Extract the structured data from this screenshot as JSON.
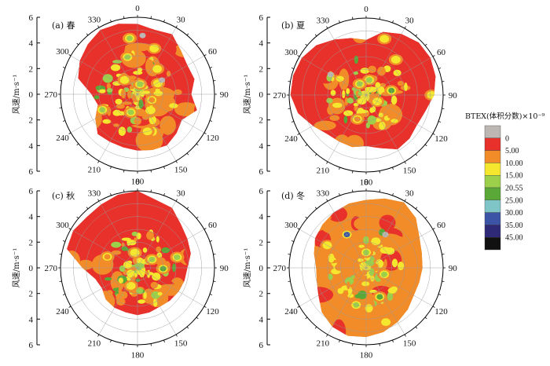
{
  "chart_data": {
    "type": "heatmap",
    "projection": "polar",
    "panels": [
      {
        "label": "(a) 春",
        "ylabel": "风速/m·s⁻¹",
        "radial_ticks": [
          "6",
          "4",
          "2",
          "0",
          "2",
          "4",
          "6"
        ],
        "angle_ticks": [
          "0",
          "30",
          "60",
          "90",
          "120",
          "150",
          "180",
          "210",
          "240",
          "270",
          "300",
          "330"
        ],
        "rmax": 6,
        "coverage": [
          5.5,
          5.2,
          5.4,
          4.8,
          4.5,
          4.6,
          4.2,
          4.8,
          4.0,
          4.3,
          4.6,
          4.5,
          4.4,
          4.3,
          4.3,
          4.4,
          3.8,
          3.2,
          3.6,
          4.8,
          5.2,
          5.5,
          5.8,
          5.7
        ],
        "base_level": 5.0,
        "blobs": [
          [
            14,
            0.8,
            20.55
          ],
          [
            38,
            2.5,
            15.0
          ],
          [
            62,
            1.8,
            15.0
          ],
          [
            112,
            1.2,
            10.0
          ],
          [
            165,
            3.0,
            15.0
          ],
          [
            200,
            1.5,
            20.55
          ],
          [
            246,
            3.0,
            20.55
          ],
          [
            318,
            1.5,
            15.0
          ],
          [
            345,
            3.0,
            20.55
          ],
          [
            5,
            4.6,
            0
          ],
          [
            60,
            2.2,
            0
          ],
          [
            352,
            4.4,
            20.55
          ],
          [
            20,
            3.8,
            15.0
          ]
        ]
      },
      {
        "label": "(b) 夏",
        "ylabel": "风速/m·s⁻¹",
        "radial_ticks": [
          "6",
          "4",
          "2",
          "0",
          "2",
          "4",
          "6"
        ],
        "angle_ticks": [
          "0",
          "30",
          "60",
          "90",
          "120",
          "150",
          "180",
          "210",
          "240",
          "270",
          "300",
          "330"
        ],
        "rmax": 6,
        "coverage": [
          4.3,
          5.1,
          5.5,
          5.8,
          5.8,
          5.6,
          5.3,
          4.8,
          4.6,
          4.8,
          4.9,
          4.3,
          4.0,
          4.2,
          4.2,
          4.3,
          4.8,
          5.5,
          5.9,
          5.9,
          5.8,
          5.5,
          5.0,
          4.6
        ],
        "base_level": 5.0,
        "blobs": [
          [
            12,
            1.2,
            20.55
          ],
          [
            40,
            3.6,
            15.0
          ],
          [
            80,
            2.0,
            25.0
          ],
          [
            90,
            5.1,
            15.0
          ],
          [
            120,
            1.0,
            15.0
          ],
          [
            200,
            2.0,
            10.0
          ],
          [
            300,
            3.2,
            0
          ],
          [
            330,
            1.0,
            20.55
          ],
          [
            18,
            4.6,
            15.0
          ]
        ]
      },
      {
        "label": "(c) 秋",
        "ylabel": "风速/m·s⁻¹",
        "radial_ticks": [
          "6",
          "4",
          "2",
          "0",
          "2",
          "4",
          "6"
        ],
        "angle_ticks": [
          "0",
          "30",
          "60",
          "90",
          "120",
          "150",
          "180",
          "210",
          "240",
          "270",
          "300",
          "330"
        ],
        "rmax": 6,
        "coverage": [
          6.0,
          5.5,
          5.4,
          4.8,
          4.5,
          4.3,
          3.9,
          3.8,
          3.7,
          3.6,
          3.5,
          3.6,
          3.7,
          3.6,
          3.6,
          3.5,
          3.2,
          3.4,
          4.3,
          5.7,
          5.8,
          5.6,
          5.7,
          5.9
        ],
        "base_level": 5.0,
        "blobs": [
          [
            60,
            1.3,
            20.55
          ],
          [
            75,
            3.2,
            20.55
          ],
          [
            92,
            2.0,
            25.0
          ],
          [
            180,
            4.5,
            15.0
          ],
          [
            200,
            1.5,
            15.0
          ],
          [
            290,
            2.5,
            10.0
          ],
          [
            350,
            1.2,
            15.0
          ]
        ]
      },
      {
        "label": "(d) 冬",
        "ylabel": "风速/m·s⁻¹",
        "radial_ticks": [
          "6",
          "4",
          "2",
          "0",
          "2",
          "4",
          "6"
        ],
        "angle_ticks": [
          "0",
          "30",
          "60",
          "90",
          "120",
          "150",
          "180",
          "210",
          "240",
          "270",
          "300",
          "330"
        ],
        "rmax": 6,
        "coverage": [
          5.3,
          5.6,
          5.9,
          5.5,
          4.8,
          4.5,
          4.4,
          4.3,
          4.3,
          4.6,
          4.9,
          5.2,
          5.4,
          5.5,
          5.3,
          4.9,
          4.3,
          4.0,
          3.9,
          4.2,
          4.6,
          4.8,
          5.0,
          5.2
        ],
        "base_level": 10.0,
        "blobs": [
          [
            0,
            1.2,
            20.55
          ],
          [
            30,
            3.0,
            0
          ],
          [
            110,
            1.5,
            20.55
          ],
          [
            155,
            2.5,
            25.0
          ],
          [
            160,
            4.5,
            15.0
          ],
          [
            195,
            3.0,
            20.55
          ],
          [
            330,
            3.0,
            35.0
          ],
          [
            300,
            3.5,
            15.0
          ],
          [
            20,
            2.2,
            15.0
          ]
        ]
      }
    ],
    "colorbar": {
      "title": "BTEX(体积分数)×10⁻⁹",
      "labels": [
        "0",
        "5.00",
        "10.00",
        "15.00",
        "20.55",
        "25.00",
        "30.00",
        "35.00",
        "45.00"
      ],
      "colors": [
        "#bdb7b4",
        "#e8312a",
        "#f28c28",
        "#f5e62e",
        "#9ccf4a",
        "#5aa838",
        "#7fc5c8",
        "#3b54a5",
        "#2e2a78",
        "#111111"
      ]
    }
  }
}
